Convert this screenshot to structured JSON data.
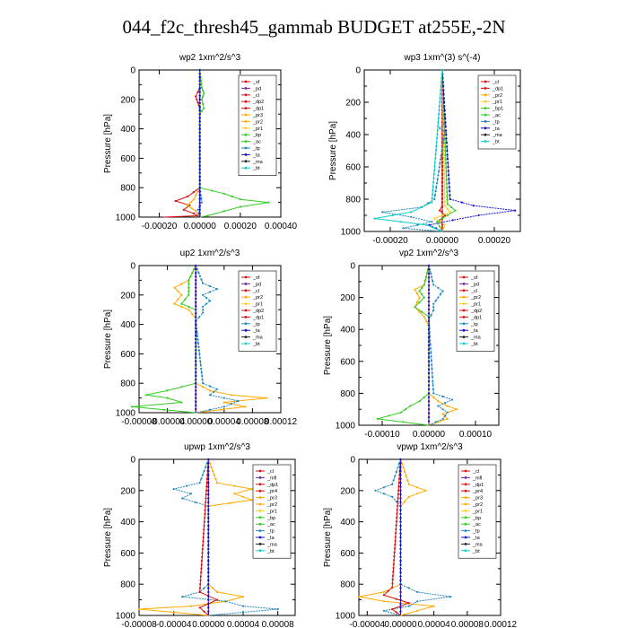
{
  "page": {
    "title": "044_f2c_thresh45_gammab  BUDGET at255E,-2N"
  },
  "colors": {
    "sf": "#dd1111",
    "pd": "#7722aa",
    "cl": "#dd1111",
    "dp2": "#dd1111",
    "dp1": "#dd1111",
    "pr3": "#ffaa00",
    "pr2": "#ffaa00",
    "pr1": "#ffcc22",
    "pr4": "#dd1111",
    "bp": "#33cc22",
    "bp1": "#33cc22",
    "ac": "#33cc22",
    "tp": "#2288bb",
    "ta": "#1111cc",
    "ma": "#222222",
    "bt": "#11cccc",
    "mfl": "#7722aa"
  },
  "chart_data": [
    {
      "type": "line",
      "title": "wp2    1xm^2/s^3",
      "ylabel": "Pressure  [hPa]",
      "xlim": [
        -0.0003,
        0.0004
      ],
      "ylim": [
        1000,
        0
      ],
      "xticks": [
        -0.0002,
        0,
        0.0002,
        0.0004
      ],
      "xtick_labels": [
        "-0.00020",
        "0.00000",
        "0.00020",
        "0.00040"
      ],
      "yticks": [
        0,
        200,
        400,
        600,
        800,
        1000
      ],
      "legend": [
        "_sf",
        "_pd",
        "_cl",
        "_dp2",
        "_dp1",
        "_pr3",
        "_pr2",
        "_pr1",
        "_bp",
        "_ac",
        "_tp",
        "_ta",
        "_ma",
        "_bt"
      ],
      "legend_position": "top-right",
      "series": [
        {
          "name": "_sf",
          "key": "sf",
          "p": [
            0,
            800,
            900,
            950,
            975,
            990,
            1000
          ],
          "values": [
            0,
            0,
            0,
            0,
            0,
            0,
            -0.00018
          ]
        },
        {
          "name": "_pd",
          "key": "pd",
          "p": [
            0,
            1000
          ],
          "values": [
            0,
            0
          ]
        },
        {
          "name": "_dp1",
          "key": "dp1",
          "p": [
            0,
            120,
            150,
            180,
            220,
            260,
            300,
            800,
            860,
            890,
            920,
            950,
            975,
            1000
          ],
          "values": [
            0,
            0,
            -1e-05,
            -2e-05,
            -1e-05,
            0,
            0,
            0,
            -6e-05,
            -0.00012,
            -5e-05,
            -8e-05,
            -3e-05,
            0
          ]
        },
        {
          "name": "_pr3",
          "key": "pr3",
          "p": [
            0,
            800,
            880,
            920,
            960,
            1000
          ],
          "values": [
            0,
            0,
            -3e-05,
            -6e-05,
            -2e-05,
            0
          ]
        },
        {
          "name": "_bp",
          "key": "bp",
          "p": [
            0,
            120,
            160,
            200,
            260,
            300,
            800,
            840,
            880,
            900,
            930,
            960,
            990,
            1000
          ],
          "values": [
            0,
            1e-05,
            2e-05,
            1e-05,
            2e-05,
            0,
            0,
            0.00012,
            0.0002,
            0.00034,
            0.0002,
            0.00012,
            4e-05,
            0
          ]
        },
        {
          "name": "_tp",
          "key": "tp",
          "p": [
            0,
            800,
            900,
            950,
            1000
          ],
          "values": [
            0,
            0,
            1e-05,
            -1e-05,
            0
          ]
        },
        {
          "name": "_ta",
          "key": "ta",
          "p": [
            0,
            1000
          ],
          "values": [
            0,
            0
          ]
        }
      ]
    },
    {
      "type": "line",
      "title": "wp3    1xm^(3) s^(-4)",
      "ylabel": "Pressure  [hPa]",
      "xlim": [
        -0.0003,
        0.0003
      ],
      "ylim": [
        1000,
        0
      ],
      "xticks": [
        -0.0002,
        0,
        0.0002
      ],
      "xtick_labels": [
        "-0.00020",
        "0.00000",
        "0.00020"
      ],
      "yticks": [
        0,
        200,
        400,
        600,
        800,
        1000
      ],
      "legend": [
        "_cl",
        "_dp1",
        "_pr2",
        "_pr1",
        "_bp1",
        "_ac",
        "_tp",
        "_ta",
        "_ma",
        "_bt"
      ],
      "legend_position": "top-right",
      "series": [
        {
          "name": "_cl",
          "key": "cl",
          "p": [
            0,
            1000
          ],
          "values": [
            0,
            0
          ]
        },
        {
          "name": "_dp1",
          "key": "dp1",
          "p": [
            0,
            840,
            870,
            900,
            930,
            960,
            1000
          ],
          "values": [
            0,
            0,
            -1e-05,
            1e-05,
            -1e-05,
            0,
            0
          ]
        },
        {
          "name": "_pr1",
          "key": "pr1",
          "p": [
            0,
            840,
            880,
            920,
            960,
            1000
          ],
          "values": [
            0,
            1e-05,
            3e-05,
            -3e-05,
            1e-05,
            0
          ]
        },
        {
          "name": "_ac",
          "key": "ac",
          "p": [
            0,
            830,
            870,
            900,
            940,
            1000
          ],
          "values": [
            0,
            2e-05,
            5e-05,
            2e-05,
            -2e-05,
            0
          ]
        },
        {
          "name": "_tp",
          "key": "tp",
          "p": [
            0,
            330,
            360,
            380,
            800,
            850,
            880,
            910,
            940,
            980,
            1000
          ],
          "values": [
            0,
            1e-05,
            -1e-05,
            1e-05,
            -3e-05,
            -8e-05,
            -0.00023,
            -0.00012,
            -4e-05,
            -0.00015,
            0
          ]
        },
        {
          "name": "_ta",
          "key": "ta",
          "p": [
            0,
            800,
            840,
            870,
            900,
            930,
            960,
            1000
          ],
          "values": [
            0,
            3e-05,
            0.00012,
            0.00028,
            0.00014,
            4e-05,
            -5e-05,
            0
          ]
        },
        {
          "name": "_bt",
          "key": "bt",
          "p": [
            0,
            820,
            880,
            920,
            960,
            1000
          ],
          "values": [
            0,
            -4e-05,
            -0.00012,
            -0.00026,
            -6e-05,
            0
          ]
        }
      ]
    },
    {
      "type": "line",
      "title": "up2    1xm^2/s^3",
      "ylabel": "Pressure  [hPa]",
      "xlim": [
        -8e-05,
        0.00012
      ],
      "ylim": [
        1000,
        0
      ],
      "xticks": [
        -8e-05,
        -4e-05,
        0,
        4e-05,
        8e-05,
        0.00012
      ],
      "xtick_labels": [
        "-0.00008",
        "-0.00004",
        "0.00000",
        "0.00004",
        "0.00008",
        "0.00012"
      ],
      "yticks": [
        0,
        200,
        400,
        600,
        800,
        1000
      ],
      "legend": [
        "_sf",
        "_pd",
        "_cl",
        "_pr2",
        "_pr1",
        "_dp2",
        "_dp1",
        "_tp",
        "_ta",
        "_ma",
        "_bt"
      ],
      "legend_position": "top-right",
      "series": [
        {
          "name": "_sf",
          "key": "sf",
          "p": [
            0,
            1000
          ],
          "values": [
            0,
            0
          ]
        },
        {
          "name": "_pr2",
          "key": "pr2",
          "p": [
            0,
            100,
            150,
            200,
            260,
            300,
            360,
            800,
            850,
            880,
            900,
            930,
            960,
            1000
          ],
          "values": [
            0,
            -1e-05,
            -3e-05,
            -2e-05,
            -3e-05,
            -1e-05,
            0,
            0,
            2e-05,
            5e-05,
            0.0001,
            4e-05,
            7e-05,
            0
          ]
        },
        {
          "name": "_bp",
          "key": "bp",
          "p": [
            0,
            100,
            200,
            260,
            300,
            800,
            850,
            880,
            900,
            930,
            960,
            1000
          ],
          "values": [
            0,
            -1e-05,
            -1e-05,
            -2e-05,
            0,
            0,
            -4e-05,
            -7e-05,
            -4e-05,
            -2e-05,
            -9e-05,
            0
          ]
        },
        {
          "name": "_tp",
          "key": "tp",
          "p": [
            0,
            120,
            160,
            200,
            240,
            280,
            320,
            380,
            800,
            840,
            880,
            920,
            960,
            1000
          ],
          "values": [
            0,
            1e-05,
            3e-05,
            1e-05,
            2e-05,
            1e-05,
            1e-05,
            0,
            1e-05,
            3e-05,
            2e-05,
            6e-05,
            4e-05,
            0
          ]
        },
        {
          "name": "_ta",
          "key": "ta",
          "p": [
            0,
            1000
          ],
          "values": [
            0,
            0
          ]
        }
      ]
    },
    {
      "type": "line",
      "title": "vp2    1xm^2/s^3",
      "ylabel": "Pressure  [hPa]",
      "xlim": [
        -0.00015,
        0.00015
      ],
      "ylim": [
        1000,
        0
      ],
      "xticks": [
        -0.0001,
        0,
        0.0001
      ],
      "xtick_labels": [
        "-0.00010",
        "0.00000",
        "0.00010"
      ],
      "yticks": [
        0,
        200,
        400,
        600,
        800,
        1000
      ],
      "legend": [
        "_sf",
        "_pd",
        "_cl",
        "_pr2",
        "_pr1",
        "_dp2",
        "_dp1",
        "_tp",
        "_ta",
        "_ma",
        "_bt"
      ],
      "legend_position": "top-right",
      "series": [
        {
          "name": "_sf",
          "key": "sf",
          "p": [
            0,
            1000
          ],
          "values": [
            0,
            0
          ]
        },
        {
          "name": "_pr2",
          "key": "pr2",
          "p": [
            0,
            120,
            150,
            200,
            260,
            320,
            380,
            800,
            850,
            880,
            900,
            930,
            960,
            1000
          ],
          "values": [
            0,
            -1e-05,
            -3e-05,
            -2e-05,
            -3e-05,
            -1e-05,
            0,
            0,
            2e-05,
            4e-05,
            6e-05,
            3e-05,
            4e-05,
            0
          ]
        },
        {
          "name": "_bp",
          "key": "bp",
          "p": [
            0,
            120,
            160,
            200,
            260,
            320,
            800,
            850,
            880,
            920,
            960,
            1000
          ],
          "values": [
            0,
            -1e-05,
            -2e-05,
            -1e-05,
            -3e-05,
            0,
            0,
            -2e-05,
            -4e-05,
            -6e-05,
            -0.00011,
            0
          ]
        },
        {
          "name": "_tp",
          "key": "tp",
          "p": [
            0,
            120,
            160,
            200,
            240,
            280,
            340,
            800,
            840,
            880,
            920,
            960,
            1000
          ],
          "values": [
            0,
            1e-05,
            3e-05,
            2e-05,
            1e-05,
            1e-05,
            0,
            1e-05,
            5e-05,
            2e-05,
            4e-05,
            3e-05,
            0
          ]
        },
        {
          "name": "_ta",
          "key": "ta",
          "p": [
            0,
            1000
          ],
          "values": [
            0,
            0
          ]
        }
      ]
    },
    {
      "type": "line",
      "title": "upwp    1xm^2/s^3",
      "ylabel": "Pressure  [hPa]",
      "xlim": [
        -8e-05,
        0.0001
      ],
      "ylim": [
        1000,
        0
      ],
      "xticks": [
        -8e-05,
        -4e-05,
        0,
        4e-05,
        8e-05
      ],
      "xtick_labels": [
        "-0.00008",
        "-0.00004",
        "0.00000",
        "0.00004",
        "0.00008"
      ],
      "yticks": [
        0,
        200,
        400,
        600,
        800,
        1000
      ],
      "legend": [
        "_cl",
        "_mfl",
        "_dp1",
        "_pr4",
        "_pr3",
        "_pr2",
        "_pr1",
        "_bp",
        "_ac",
        "_tp",
        "_ta",
        "_ma",
        "_bt"
      ],
      "legend_position": "top-right",
      "series": [
        {
          "name": "_cl",
          "key": "cl",
          "p": [
            0,
            1000
          ],
          "values": [
            0,
            0
          ]
        },
        {
          "name": "_pr2",
          "key": "pr2",
          "p": [
            0,
            150,
            190,
            220,
            260,
            300,
            800,
            850,
            880,
            910,
            940,
            960,
            1000
          ],
          "values": [
            0,
            1e-05,
            5e-05,
            3e-05,
            5e-05,
            0,
            0,
            1e-05,
            4e-05,
            2e-05,
            -2e-05,
            -8e-05,
            0
          ]
        },
        {
          "name": "_tp",
          "key": "tp",
          "p": [
            0,
            150,
            190,
            220,
            250,
            300,
            800,
            850,
            880,
            910,
            940,
            960,
            1000
          ],
          "values": [
            0,
            -1e-05,
            -4e-05,
            -2e-05,
            -3e-05,
            0,
            0,
            -1e-05,
            -3e-05,
            2e-05,
            4e-05,
            8e-05,
            0
          ]
        },
        {
          "name": "_dp1",
          "key": "dp1",
          "p": [
            0,
            850,
            900,
            950,
            1000
          ],
          "values": [
            0,
            -1e-05,
            1e-05,
            -1e-05,
            0
          ]
        },
        {
          "name": "_ta",
          "key": "ta",
          "p": [
            0,
            1000
          ],
          "values": [
            0,
            0
          ]
        }
      ]
    },
    {
      "type": "line",
      "title": "vpwp    1xm^2/s^3",
      "ylabel": "Pressure  [hPa]",
      "xlim": [
        -5e-05,
        0.00012
      ],
      "ylim": [
        1000,
        0
      ],
      "xticks": [
        -4e-05,
        0,
        4e-05,
        8e-05,
        0.00012
      ],
      "xtick_labels": [
        "-0.00004",
        "0.00000",
        "0.00004",
        "0.00008",
        "0.00012"
      ],
      "yticks": [
        0,
        200,
        400,
        600,
        800,
        1000
      ],
      "legend": [
        "_cl",
        "_mfl",
        "_dp1",
        "_pr4",
        "_pr3",
        "_pr2",
        "_pr1",
        "_bp",
        "_ac",
        "_tp",
        "_ta",
        "_ma",
        "_bt"
      ],
      "legend_position": "top-right",
      "series": [
        {
          "name": "_cl",
          "key": "cl",
          "p": [
            0,
            1000
          ],
          "values": [
            0,
            0
          ]
        },
        {
          "name": "_pr2",
          "key": "pr2",
          "p": [
            0,
            160,
            200,
            240,
            300,
            800,
            850,
            880,
            910,
            940,
            970,
            1000
          ],
          "values": [
            0,
            1e-05,
            3e-05,
            1e-05,
            0,
            0,
            -2e-05,
            -5e-05,
            -2e-05,
            4e-05,
            2e-05,
            0
          ]
        },
        {
          "name": "_tp",
          "key": "tp",
          "p": [
            0,
            160,
            200,
            240,
            300,
            800,
            850,
            880,
            910,
            940,
            970,
            1000
          ],
          "values": [
            0,
            -1e-05,
            -3e-05,
            -1e-05,
            0,
            0,
            2e-05,
            6e-05,
            2e-05,
            1e-05,
            -2e-05,
            0
          ]
        },
        {
          "name": "_dp1",
          "key": "dp1",
          "p": [
            0,
            820,
            870,
            920,
            960,
            1000
          ],
          "values": [
            0,
            -1e-05,
            -2e-05,
            1e-05,
            -1e-05,
            0
          ]
        },
        {
          "name": "_ta",
          "key": "ta",
          "p": [
            0,
            1000
          ],
          "values": [
            0,
            0
          ]
        }
      ]
    }
  ]
}
